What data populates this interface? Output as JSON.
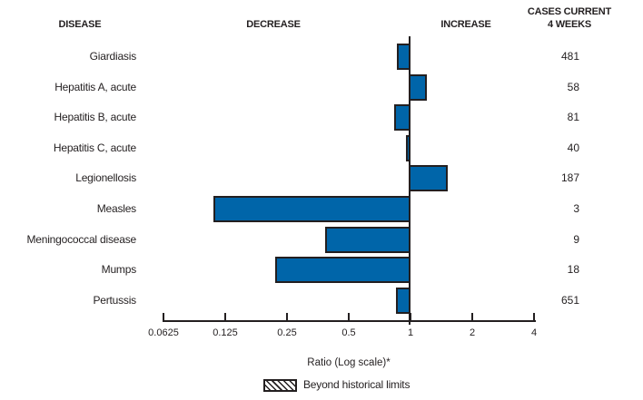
{
  "header": {
    "disease": "DISEASE",
    "decrease": "DECREASE",
    "increase": "INCREASE",
    "cases_line1": "CASES CURRENT",
    "cases_line2": "4 WEEKS"
  },
  "legend": {
    "label": "Beyond historical limits"
  },
  "colors": {
    "bar_fill": "#0065A9",
    "ink": "#231f20",
    "background": "#ffffff"
  },
  "chart_data": {
    "type": "bar",
    "orientation": "horizontal",
    "scale": "log2",
    "xlabel": "Ratio (Log scale)*",
    "baseline_ratio": 1,
    "xlim": [
      0.0625,
      4
    ],
    "x_ticks": [
      0.0625,
      0.125,
      0.25,
      0.5,
      1,
      2,
      4
    ],
    "x_tick_labels": [
      "0.0625",
      "0.125",
      "0.25",
      "0.5",
      "1",
      "2",
      "4"
    ],
    "legend_entries": [
      "Beyond historical limits"
    ],
    "series": [
      {
        "disease": "Giardiasis",
        "ratio": 0.86,
        "cases": "481",
        "beyond_historical_limits": false
      },
      {
        "disease": "Hepatitis A, acute",
        "ratio": 1.2,
        "cases": "58",
        "beyond_historical_limits": false
      },
      {
        "disease": "Hepatitis B, acute",
        "ratio": 0.83,
        "cases": "81",
        "beyond_historical_limits": false
      },
      {
        "disease": "Hepatitis C, acute",
        "ratio": 0.95,
        "cases": "40",
        "beyond_historical_limits": false
      },
      {
        "disease": "Legionellosis",
        "ratio": 1.52,
        "cases": "187",
        "beyond_historical_limits": false
      },
      {
        "disease": "Measles",
        "ratio": 0.11,
        "cases": "3",
        "beyond_historical_limits": false
      },
      {
        "disease": "Meningococcal disease",
        "ratio": 0.385,
        "cases": "9",
        "beyond_historical_limits": false
      },
      {
        "disease": "Mumps",
        "ratio": 0.22,
        "cases": "18",
        "beyond_historical_limits": false
      },
      {
        "disease": "Pertussis",
        "ratio": 0.85,
        "cases": "651",
        "beyond_historical_limits": false
      }
    ]
  }
}
